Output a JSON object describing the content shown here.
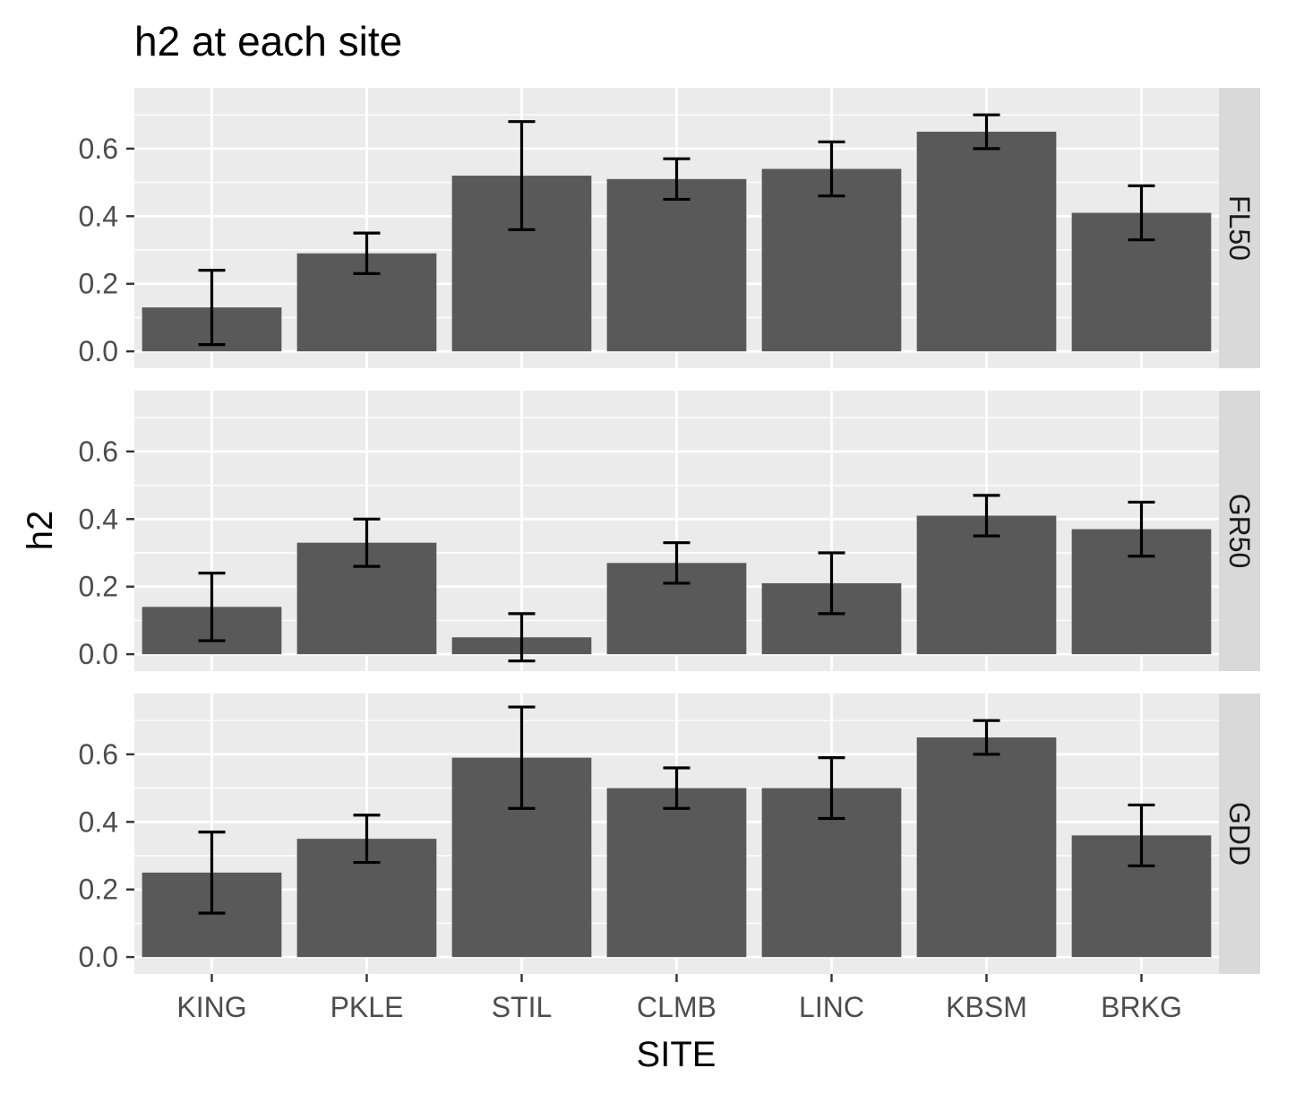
{
  "chart_data": {
    "type": "bar",
    "title": "h2 at each site",
    "xlabel": "SITE",
    "ylabel": "h2",
    "categories": [
      "KING",
      "PKLE",
      "STIL",
      "CLMB",
      "LINC",
      "KBSM",
      "BRKG"
    ],
    "ylim": [
      -0.05,
      0.78
    ],
    "yticks": [
      0.0,
      0.2,
      0.4,
      0.6
    ],
    "ytick_labels": [
      "0.0",
      "0.2",
      "0.4",
      "0.6"
    ],
    "grid": true,
    "legend": "none",
    "colors": {
      "bar": "#595959",
      "panel_bg": "#ebebeb",
      "strip_bg": "#d9d9d9",
      "grid": "#ffffff",
      "errorbar": "#000000"
    },
    "facets": [
      {
        "label": "FL50",
        "values": [
          0.13,
          0.29,
          0.52,
          0.51,
          0.54,
          0.65,
          0.41
        ],
        "lower": [
          0.02,
          0.23,
          0.36,
          0.45,
          0.46,
          0.6,
          0.33
        ],
        "upper": [
          0.24,
          0.35,
          0.68,
          0.57,
          0.62,
          0.7,
          0.49
        ]
      },
      {
        "label": "GR50",
        "values": [
          0.14,
          0.33,
          0.05,
          0.27,
          0.21,
          0.41,
          0.37
        ],
        "lower": [
          0.04,
          0.26,
          -0.02,
          0.21,
          0.12,
          0.35,
          0.29
        ],
        "upper": [
          0.24,
          0.4,
          0.12,
          0.33,
          0.3,
          0.47,
          0.45
        ]
      },
      {
        "label": "GDD",
        "values": [
          0.25,
          0.35,
          0.59,
          0.5,
          0.5,
          0.65,
          0.36
        ],
        "lower": [
          0.13,
          0.28,
          0.44,
          0.44,
          0.41,
          0.6,
          0.27
        ],
        "upper": [
          0.37,
          0.42,
          0.74,
          0.56,
          0.59,
          0.7,
          0.45
        ]
      }
    ]
  }
}
